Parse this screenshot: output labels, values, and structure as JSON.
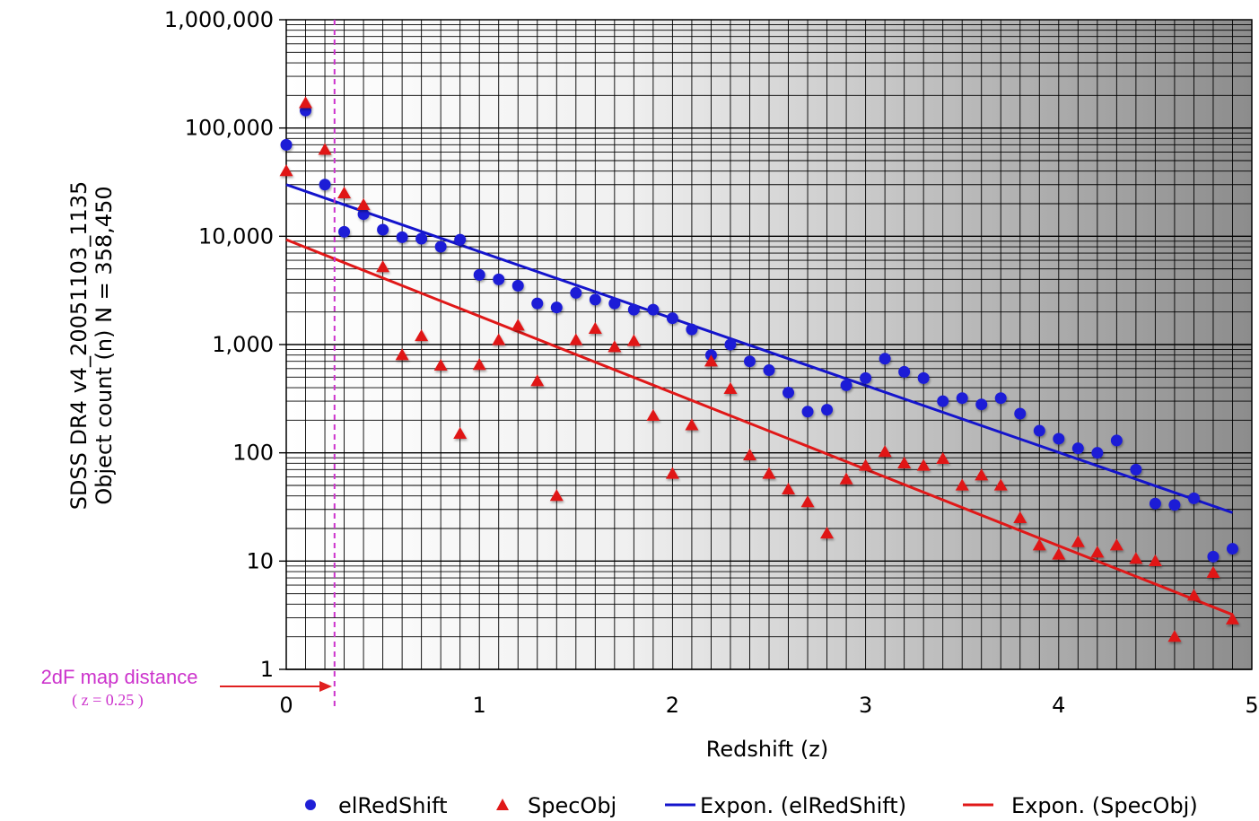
{
  "chart_data": {
    "type": "scatter",
    "title": "",
    "xlabel": "Redshift",
    "xlabel_var": "(z)",
    "ylabel_line1": "SDSS DR4 v4_20051103_1135",
    "ylabel_line2": "Object count (n)  N = 358,450",
    "xlim": [
      0,
      5
    ],
    "ylim": [
      1,
      1000000
    ],
    "yscale": "log",
    "grid": true,
    "legend_position": "bottom",
    "x_ticks": [
      "0",
      "1",
      "2",
      "3",
      "4",
      "5"
    ],
    "y_ticks": [
      "1",
      "10",
      "100",
      "1,000",
      "10,000",
      "100,000",
      "1,000,000"
    ],
    "series": [
      {
        "name": "elRedShift",
        "marker": "circle",
        "color": "#1f1fd6",
        "x": [
          0,
          0.1,
          0.2,
          0.3,
          0.4,
          0.5,
          0.6,
          0.7,
          0.8,
          0.9,
          1.0,
          1.1,
          1.2,
          1.3,
          1.4,
          1.5,
          1.6,
          1.7,
          1.8,
          1.9,
          2.0,
          2.1,
          2.2,
          2.3,
          2.4,
          2.5,
          2.6,
          2.7,
          2.8,
          2.9,
          3.0,
          3.1,
          3.2,
          3.3,
          3.4,
          3.5,
          3.6,
          3.7,
          3.8,
          3.9,
          4.0,
          4.1,
          4.2,
          4.3,
          4.4,
          4.5,
          4.6,
          4.7,
          4.8,
          4.9
        ],
        "y": [
          70000,
          145000,
          30000,
          11000,
          16000,
          11500,
          9800,
          9500,
          8000,
          9300,
          4400,
          4000,
          3500,
          2400,
          2200,
          3000,
          2600,
          2400,
          2100,
          2100,
          1750,
          1380,
          800,
          1000,
          700,
          580,
          360,
          240,
          250,
          420,
          490,
          740,
          560,
          490,
          300,
          320,
          280,
          320,
          230,
          160,
          135,
          110,
          100,
          130,
          70,
          34,
          33,
          38,
          11,
          13
        ]
      },
      {
        "name": "SpecObj",
        "marker": "triangle",
        "color": "#e01818",
        "x": [
          0,
          0.1,
          0.2,
          0.3,
          0.4,
          0.5,
          0.6,
          0.7,
          0.8,
          0.9,
          1.0,
          1.1,
          1.2,
          1.3,
          1.4,
          1.5,
          1.6,
          1.7,
          1.8,
          1.9,
          2.0,
          2.1,
          2.2,
          2.3,
          2.4,
          2.5,
          2.6,
          2.7,
          2.8,
          2.9,
          3.0,
          3.1,
          3.2,
          3.3,
          3.4,
          3.5,
          3.6,
          3.7,
          3.8,
          3.9,
          4.0,
          4.1,
          4.2,
          4.3,
          4.4,
          4.5,
          4.6,
          4.7,
          4.8,
          4.9
        ],
        "y": [
          40000,
          170000,
          63000,
          25000,
          19500,
          5200,
          800,
          1200,
          640,
          150,
          650,
          1100,
          1500,
          460,
          40,
          1100,
          1400,
          950,
          1080,
          220,
          64,
          180,
          700,
          390,
          95,
          64,
          46,
          35,
          18,
          57,
          76,
          102,
          80,
          76,
          88,
          50,
          62,
          50,
          25,
          14,
          11.5,
          15,
          12,
          14,
          10.5,
          10,
          2,
          4.8,
          7.8,
          2.9
        ]
      },
      {
        "name": "Expon. (elRedShift)",
        "type": "line",
        "color": "#1414cc",
        "x": [
          0,
          4.9
        ],
        "y": [
          30000,
          28
        ]
      },
      {
        "name": "Expon. (SpecObj)",
        "type": "line",
        "color": "#e01818",
        "x": [
          0,
          4.9
        ],
        "y": [
          9300,
          3.2
        ]
      }
    ],
    "annotations": [
      {
        "text": "2dF map distance",
        "subtext": "( z = 0.25 )",
        "x": 0.25,
        "color": "#cc33cc"
      }
    ]
  }
}
